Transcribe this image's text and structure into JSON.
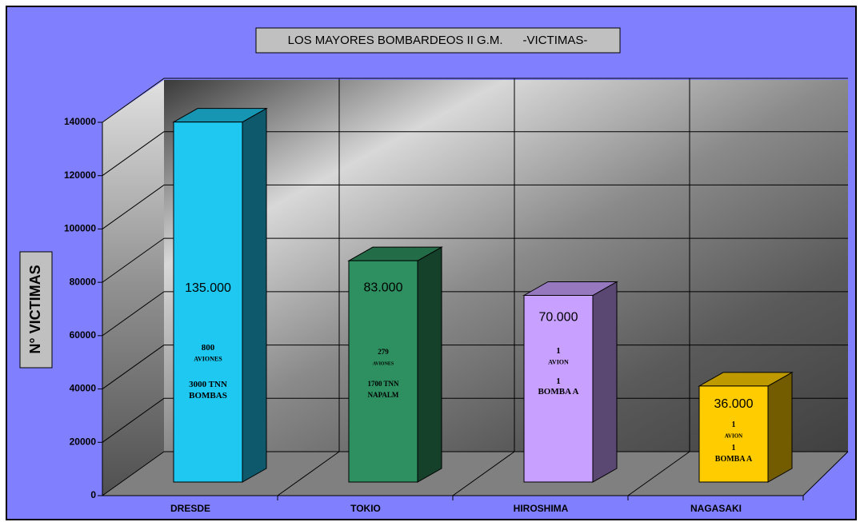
{
  "chart_data": {
    "type": "bar3d",
    "title": "LOS MAYORES BOMBARDEOS II G.M.      -VICTIMAS-",
    "y_label": "N° VICTIMAS",
    "categories": [
      "DRESDE",
      "TOKIO",
      "HIROSHIMA",
      "NAGASAKI"
    ],
    "values": [
      135000,
      83000,
      70000,
      36000
    ],
    "value_labels": [
      "135.000",
      "83.000",
      "70.000",
      "36.000"
    ],
    "annotations": [
      [
        "800",
        "AVIONES",
        "3000 TNN",
        "BOMBAS"
      ],
      [
        "279",
        "AVIONES",
        "1700 TNN",
        "NAPALM"
      ],
      [
        "1",
        "AVION",
        "1",
        "BOMBA A"
      ],
      [
        "1",
        "AVION",
        "1",
        "BOMBA A"
      ]
    ],
    "colors": [
      "#1ec8f0",
      "#2e9060",
      "#c8a0ff",
      "#ffcc00"
    ],
    "ylim": [
      0,
      140000
    ],
    "yticks": [
      0,
      20000,
      40000,
      60000,
      80000,
      100000,
      120000,
      140000
    ],
    "grid": true
  }
}
